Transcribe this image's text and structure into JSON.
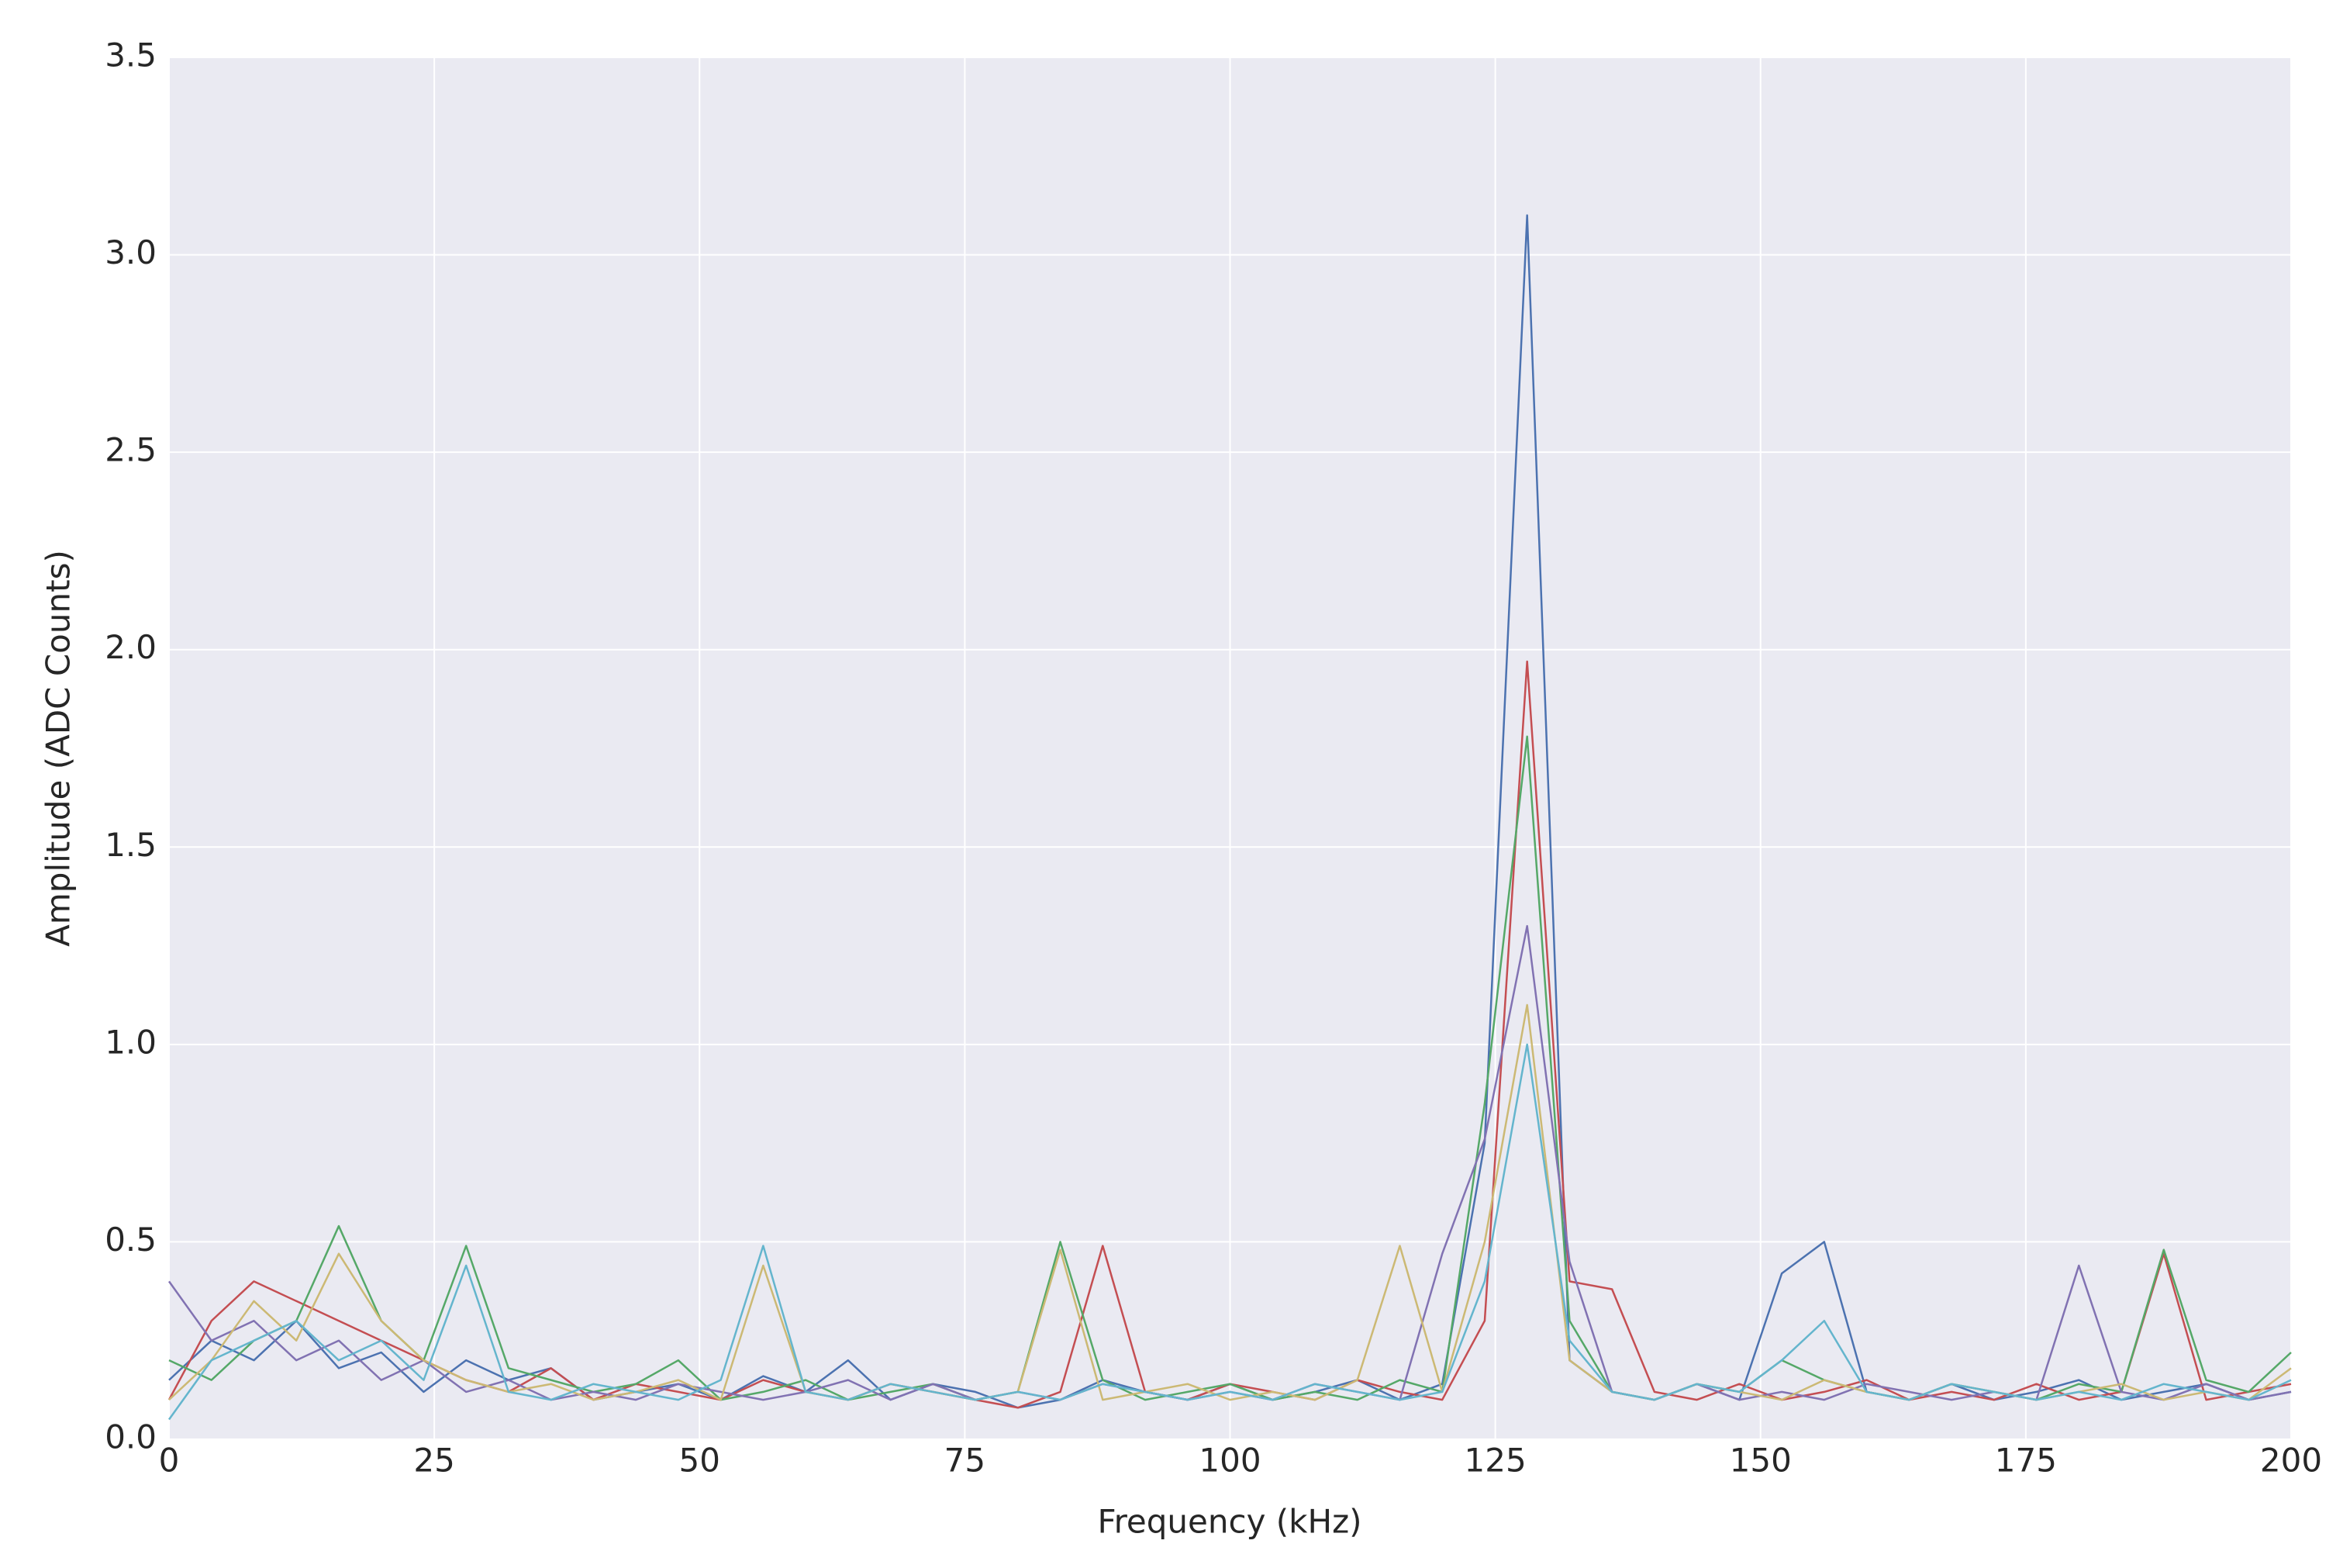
{
  "chart_data": {
    "type": "line",
    "xlabel": "Frequency (kHz)",
    "ylabel": "Amplitude (ADC Counts)",
    "x": [
      0,
      4,
      8,
      12,
      16,
      20,
      24,
      28,
      32,
      36,
      40,
      44,
      48,
      52,
      56,
      60,
      64,
      68,
      72,
      76,
      80,
      84,
      88,
      92,
      96,
      100,
      104,
      108,
      112,
      116,
      120,
      124,
      128,
      132,
      136,
      140,
      144,
      148,
      152,
      156,
      160,
      164,
      168,
      172,
      176,
      180,
      184,
      188,
      192,
      196,
      200
    ],
    "series": [
      {
        "color": "#4c72b0",
        "values": [
          0.15,
          0.25,
          0.2,
          0.3,
          0.18,
          0.22,
          0.12,
          0.2,
          0.15,
          0.18,
          0.1,
          0.12,
          0.14,
          0.1,
          0.16,
          0.12,
          0.2,
          0.1,
          0.14,
          0.12,
          0.08,
          0.1,
          0.15,
          0.12,
          0.1,
          0.14,
          0.1,
          0.12,
          0.15,
          0.1,
          0.14,
          0.75,
          3.1,
          0.2,
          0.12,
          0.1,
          0.14,
          0.1,
          0.42,
          0.5,
          0.12,
          0.1,
          0.14,
          0.1,
          0.12,
          0.15,
          0.1,
          0.12,
          0.14,
          0.1,
          0.12
        ]
      },
      {
        "color": "#c44e52",
        "values": [
          0.1,
          0.3,
          0.4,
          0.35,
          0.3,
          0.25,
          0.2,
          0.15,
          0.12,
          0.18,
          0.1,
          0.14,
          0.12,
          0.1,
          0.15,
          0.12,
          0.1,
          0.14,
          0.12,
          0.1,
          0.08,
          0.12,
          0.49,
          0.12,
          0.1,
          0.14,
          0.12,
          0.1,
          0.15,
          0.12,
          0.1,
          0.3,
          1.97,
          0.4,
          0.38,
          0.12,
          0.1,
          0.14,
          0.1,
          0.12,
          0.15,
          0.1,
          0.12,
          0.1,
          0.14,
          0.1,
          0.12,
          0.47,
          0.1,
          0.12,
          0.14
        ]
      },
      {
        "color": "#55a868",
        "values": [
          0.2,
          0.15,
          0.25,
          0.3,
          0.54,
          0.3,
          0.2,
          0.49,
          0.18,
          0.15,
          0.12,
          0.14,
          0.2,
          0.1,
          0.12,
          0.15,
          0.1,
          0.12,
          0.14,
          0.1,
          0.12,
          0.5,
          0.15,
          0.1,
          0.12,
          0.14,
          0.1,
          0.12,
          0.1,
          0.15,
          0.12,
          0.85,
          1.78,
          0.3,
          0.12,
          0.1,
          0.14,
          0.12,
          0.2,
          0.15,
          0.12,
          0.1,
          0.14,
          0.12,
          0.1,
          0.14,
          0.12,
          0.48,
          0.15,
          0.12,
          0.22
        ]
      },
      {
        "color": "#8172b2",
        "values": [
          0.4,
          0.25,
          0.3,
          0.2,
          0.25,
          0.15,
          0.2,
          0.12,
          0.15,
          0.1,
          0.12,
          0.1,
          0.14,
          0.12,
          0.1,
          0.12,
          0.15,
          0.1,
          0.14,
          0.1,
          0.12,
          0.1,
          0.14,
          0.12,
          0.1,
          0.12,
          0.1,
          0.14,
          0.12,
          0.1,
          0.47,
          0.76,
          1.3,
          0.45,
          0.12,
          0.1,
          0.14,
          0.1,
          0.12,
          0.1,
          0.14,
          0.12,
          0.1,
          0.12,
          0.1,
          0.44,
          0.12,
          0.1,
          0.14,
          0.1,
          0.12
        ]
      },
      {
        "color": "#ccb974",
        "values": [
          0.1,
          0.2,
          0.35,
          0.25,
          0.47,
          0.3,
          0.2,
          0.15,
          0.12,
          0.14,
          0.1,
          0.12,
          0.15,
          0.1,
          0.44,
          0.12,
          0.1,
          0.14,
          0.12,
          0.1,
          0.12,
          0.48,
          0.1,
          0.12,
          0.14,
          0.1,
          0.12,
          0.1,
          0.15,
          0.49,
          0.12,
          0.5,
          1.1,
          0.2,
          0.12,
          0.1,
          0.14,
          0.12,
          0.1,
          0.15,
          0.12,
          0.1,
          0.14,
          0.12,
          0.1,
          0.12,
          0.14,
          0.1,
          0.12,
          0.1,
          0.18
        ]
      },
      {
        "color": "#64b5cd",
        "values": [
          0.05,
          0.2,
          0.25,
          0.3,
          0.2,
          0.25,
          0.15,
          0.44,
          0.12,
          0.1,
          0.14,
          0.12,
          0.1,
          0.15,
          0.49,
          0.12,
          0.1,
          0.14,
          0.12,
          0.1,
          0.12,
          0.1,
          0.14,
          0.12,
          0.1,
          0.12,
          0.1,
          0.14,
          0.12,
          0.1,
          0.12,
          0.4,
          1.0,
          0.25,
          0.12,
          0.1,
          0.14,
          0.12,
          0.2,
          0.3,
          0.12,
          0.1,
          0.14,
          0.12,
          0.1,
          0.12,
          0.1,
          0.14,
          0.12,
          0.1,
          0.15
        ]
      }
    ],
    "xlim": [
      0,
      200
    ],
    "xticks": [
      0,
      25,
      50,
      75,
      100,
      125,
      150,
      175,
      200
    ],
    "ylim": [
      0,
      3.5
    ],
    "yticks": [
      {
        "value": 0,
        "label": "0.0"
      },
      0.5,
      {
        "value": 1,
        "label": "1.0"
      },
      1.5,
      {
        "value": 2,
        "label": "2.0"
      },
      2.5,
      {
        "value": 3,
        "label": "3.0"
      },
      3.5
    ],
    "grid": true
  }
}
